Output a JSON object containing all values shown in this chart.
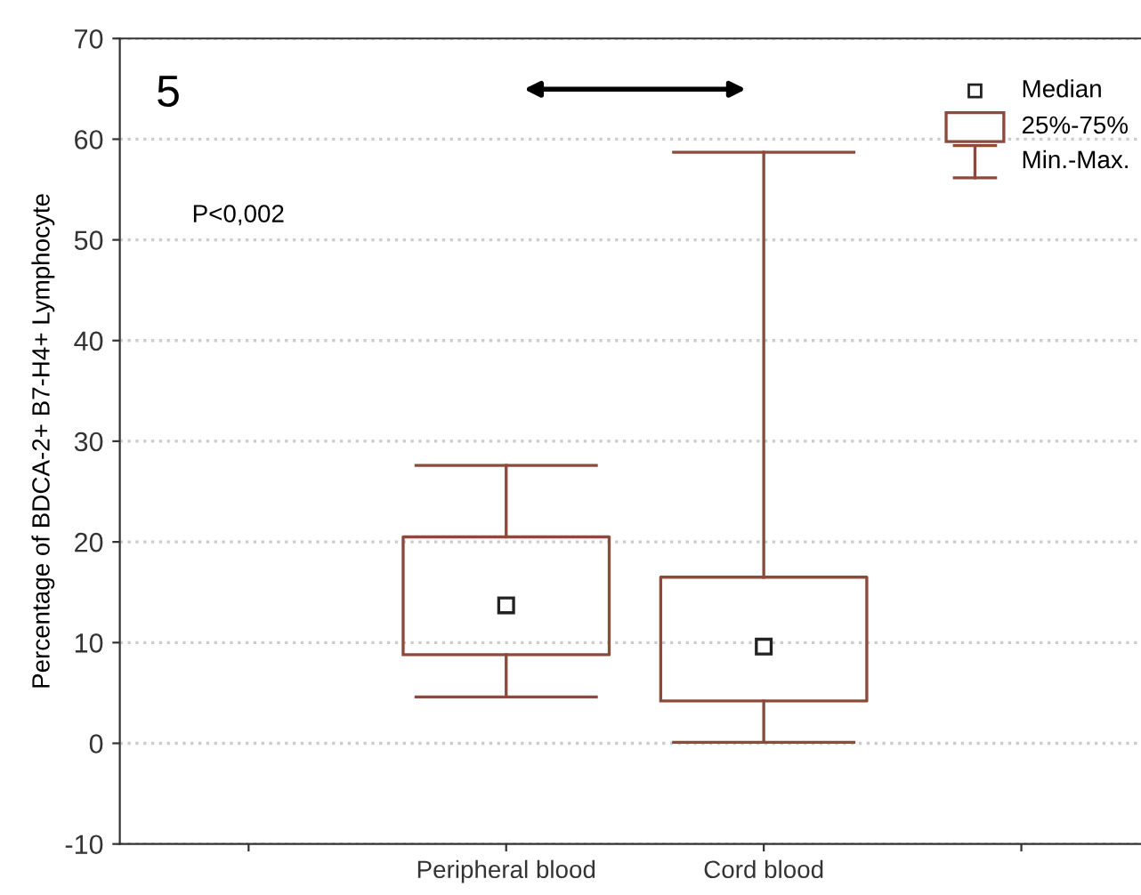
{
  "chart_data": {
    "type": "box",
    "ylabel": "Percentage of BDCA-2+ B7-H4+ Lymphocyte",
    "categories": [
      "Peripheral blood",
      "Cord blood"
    ],
    "boxes": [
      {
        "low": 4.6,
        "q1": 8.8,
        "median": 13.7,
        "q3": 20.5,
        "high": 27.6
      },
      {
        "low": 0.1,
        "q1": 4.2,
        "median": 9.6,
        "q3": 16.5,
        "high": 58.7
      }
    ],
    "color": "#8b4a3c",
    "ylim": [
      -10,
      70
    ],
    "yticks": [
      -10,
      0,
      10,
      20,
      30,
      40,
      50,
      60,
      70
    ],
    "grid": "y",
    "marker": "square",
    "annotations": [
      "5",
      "P<0,002",
      "Median",
      "25%-75%",
      "Min.-Max."
    ]
  }
}
